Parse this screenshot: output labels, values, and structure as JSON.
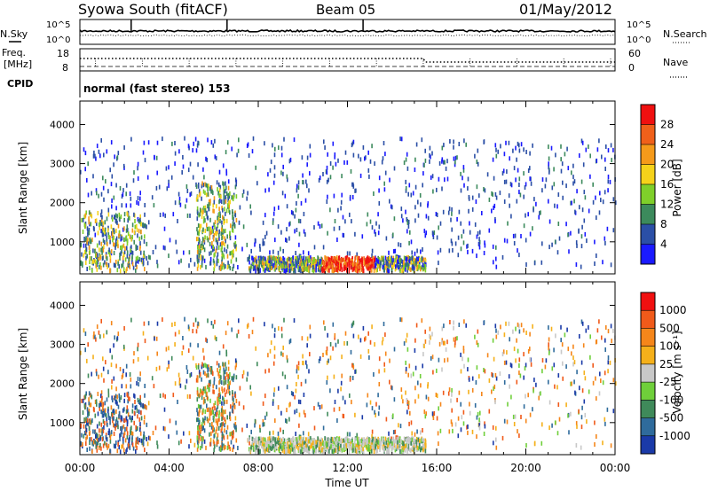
{
  "header": {
    "station": "Syowa South (fitACF)",
    "beam": "Beam 05",
    "date": "01/May/2012"
  },
  "top_panels": {
    "nsky_label": "N.Sky",
    "nsky_ticks": [
      "10^5",
      "10^0"
    ],
    "nsearch_label": "N.Search",
    "nsearch_ticks": [
      "10^5",
      "10^0"
    ],
    "freq_label": "Freq.",
    "freq_unit": "[MHz]",
    "freq_ticks": [
      "18",
      "8"
    ],
    "nave_label": "Nave",
    "nave_ticks": [
      "60",
      "0"
    ],
    "cpid_label": "CPID",
    "cpid_value": "normal (fast stereo) 153"
  },
  "chart_data": [
    {
      "type": "heatmap",
      "name": "power",
      "ylabel": "Slant Range [km]",
      "yticks": [
        "1000",
        "2000",
        "3000",
        "4000"
      ],
      "ylim": [
        180,
        4600
      ],
      "xlim_hours": [
        0,
        24
      ],
      "colorbar_label": "Power [dB]",
      "colorbar_ticks": [
        "4",
        "8",
        "12",
        "16",
        "20",
        "24",
        "28"
      ],
      "colors": [
        "#1a1aff",
        "#2b4fa6",
        "#3c8a5c",
        "#7fcf2a",
        "#f5d21a",
        "#f59a1a",
        "#f0601a",
        "#f01010"
      ]
    },
    {
      "type": "heatmap",
      "name": "velocity",
      "ylabel": "Slant Range [km]",
      "yticks": [
        "1000",
        "2000",
        "3000",
        "4000"
      ],
      "ylim": [
        180,
        4600
      ],
      "xlim_hours": [
        0,
        24
      ],
      "xlabel": "Time UT",
      "xticks": [
        "00:00",
        "04:00",
        "08:00",
        "12:00",
        "16:00",
        "20:00",
        "00:00"
      ],
      "colorbar_label": "Velocity [m s⁻¹]",
      "colorbar_ticks": [
        "1000",
        "500",
        "100",
        "25",
        "-25",
        "-100",
        "-500",
        "-1000"
      ],
      "colors": [
        "#1a3aa8",
        "#2f6b9c",
        "#3f8a5a",
        "#6fcf3a",
        "#c8c8c8",
        "#f5b01a",
        "#f5861a",
        "#f05a1a",
        "#f01010"
      ]
    }
  ]
}
